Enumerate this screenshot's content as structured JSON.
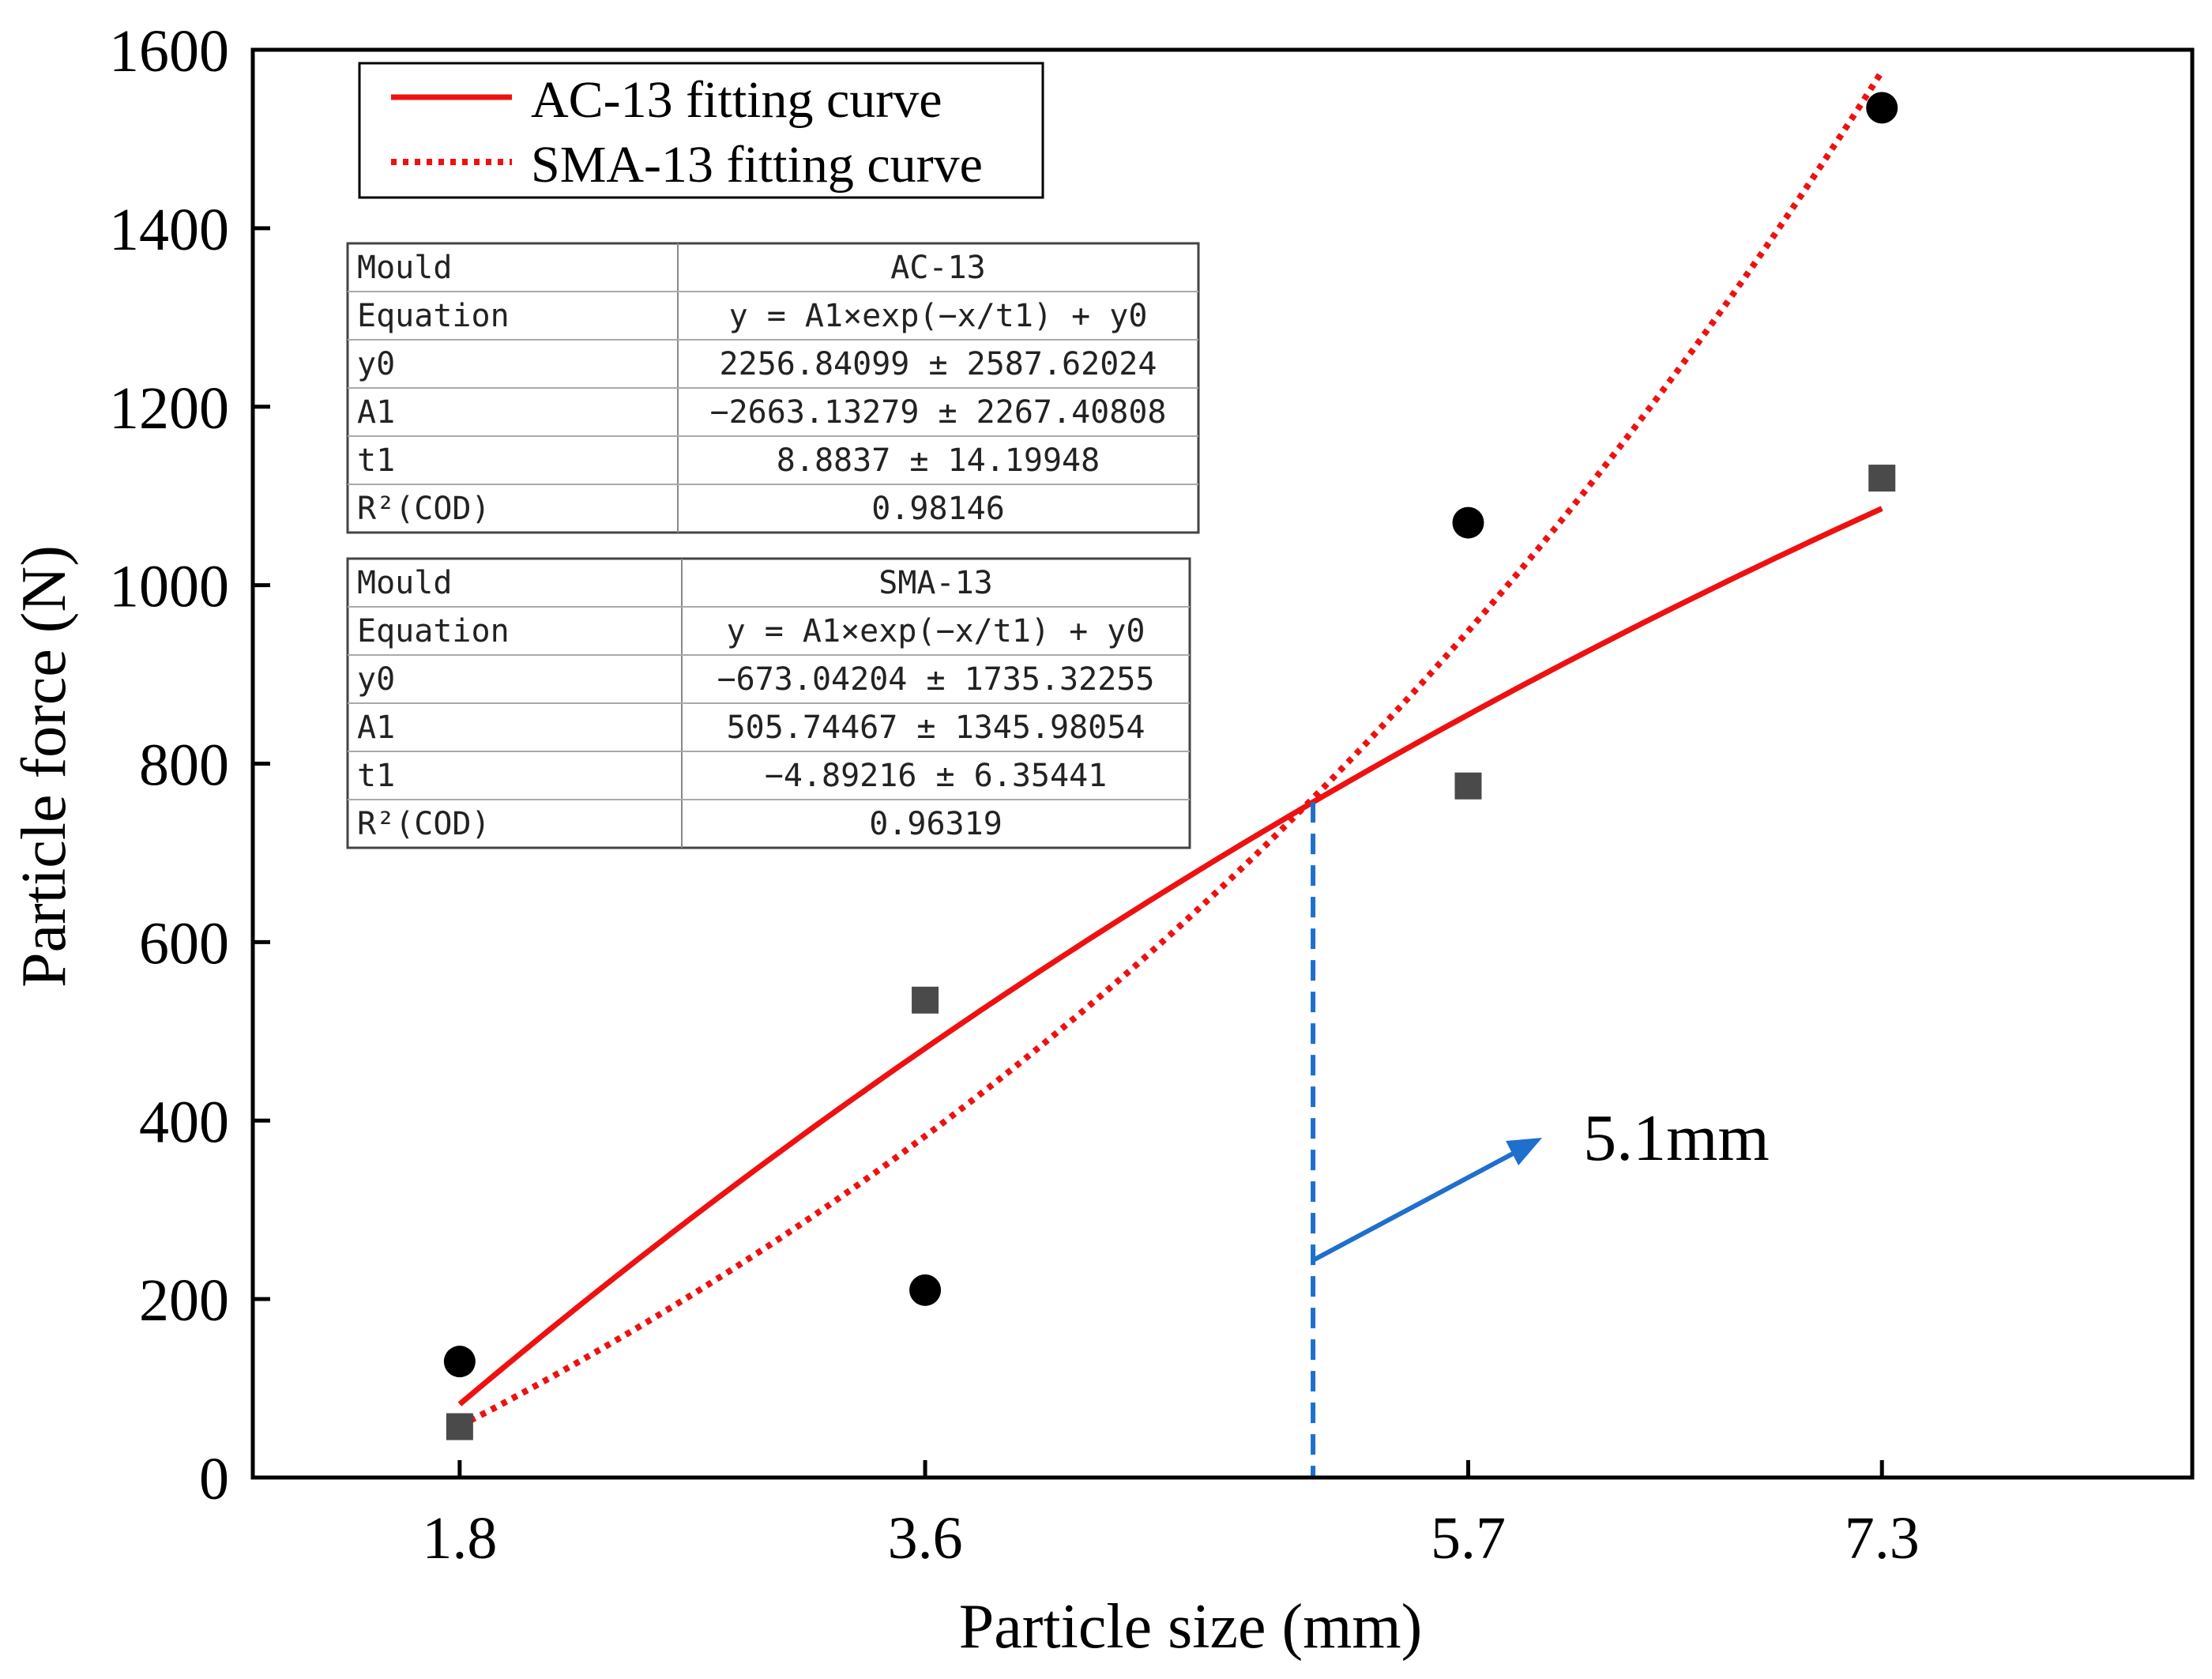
{
  "chart_data": {
    "type": "scatter",
    "xlabel": "Particle size  (mm)",
    "ylabel": "Particle force  (N)",
    "xlim": [
      1.0,
      8.5
    ],
    "ylim": [
      0,
      1600
    ],
    "x_categories": [
      "1.8",
      "3.6",
      "5.7",
      "7.3"
    ],
    "x_category_positions": [
      1.8,
      3.6,
      5.7,
      7.3
    ],
    "y_ticks": [
      0,
      200,
      400,
      600,
      800,
      1000,
      1200,
      1400,
      1600
    ],
    "y_tick_labels": [
      "0",
      "200",
      "400",
      "600",
      "800",
      "1000",
      "1200",
      "1400",
      "1600"
    ],
    "series": [
      {
        "name": "AC-13",
        "marker": "square",
        "color": "#4a4a4a",
        "points": [
          [
            1.8,
            57
          ],
          [
            3.6,
            535
          ],
          [
            5.7,
            775
          ],
          [
            7.3,
            1120
          ]
        ]
      },
      {
        "name": "SMA-13",
        "marker": "circle",
        "color": "#000000",
        "points": [
          [
            1.8,
            130
          ],
          [
            3.6,
            210
          ],
          [
            5.7,
            1070
          ],
          [
            7.3,
            1535
          ]
        ]
      }
    ],
    "curves": [
      {
        "name": "AC-13 fitting curve",
        "style": "solid",
        "color": "#ee1111",
        "model": "y = A1*exp(-x/t1) + y0",
        "x_range": [
          1.8,
          7.3
        ],
        "params": {
          "y0": 2256.84099,
          "A1": -2663.13279,
          "t1": 8.8837
        }
      },
      {
        "name": "SMA-13 fitting curve",
        "style": "dotted",
        "color": "#ee1111",
        "model": "y = A1*exp(-x/t1) + y0",
        "x_range": [
          1.8,
          7.3
        ],
        "params": {
          "y0": -673.04204,
          "A1": 505.74467,
          "t1": -4.89216
        }
      }
    ],
    "legend": {
      "position": "top-left",
      "entries": [
        "AC-13 fitting curve",
        "SMA-13 fitting curve"
      ]
    },
    "annotation": {
      "text": "5.1mm",
      "intersection_x": 5.1,
      "intersection_y": 757,
      "arrow_color": "#1f6fcc"
    },
    "fit_tables": [
      {
        "rows": [
          [
            "Mould",
            "AC-13"
          ],
          [
            "Equation",
            "y = A1×exp(−x/t1) + y0"
          ],
          [
            "y0",
            "2256.84099 ± 2587.62024"
          ],
          [
            "A1",
            "−2663.13279 ± 2267.40808"
          ],
          [
            "t1",
            "8.8837 ± 14.19948"
          ],
          [
            "R²(COD)",
            "0.98146"
          ]
        ]
      },
      {
        "rows": [
          [
            "Mould",
            "SMA-13"
          ],
          [
            "Equation",
            "y = A1×exp(−x/t1) + y0"
          ],
          [
            "y0",
            "−673.04204 ± 1735.32255"
          ],
          [
            "A1",
            "505.74467 ± 1345.98054"
          ],
          [
            "t1",
            "−4.89216 ± 6.35441"
          ],
          [
            "R²(COD)",
            "0.96319"
          ]
        ]
      }
    ]
  }
}
